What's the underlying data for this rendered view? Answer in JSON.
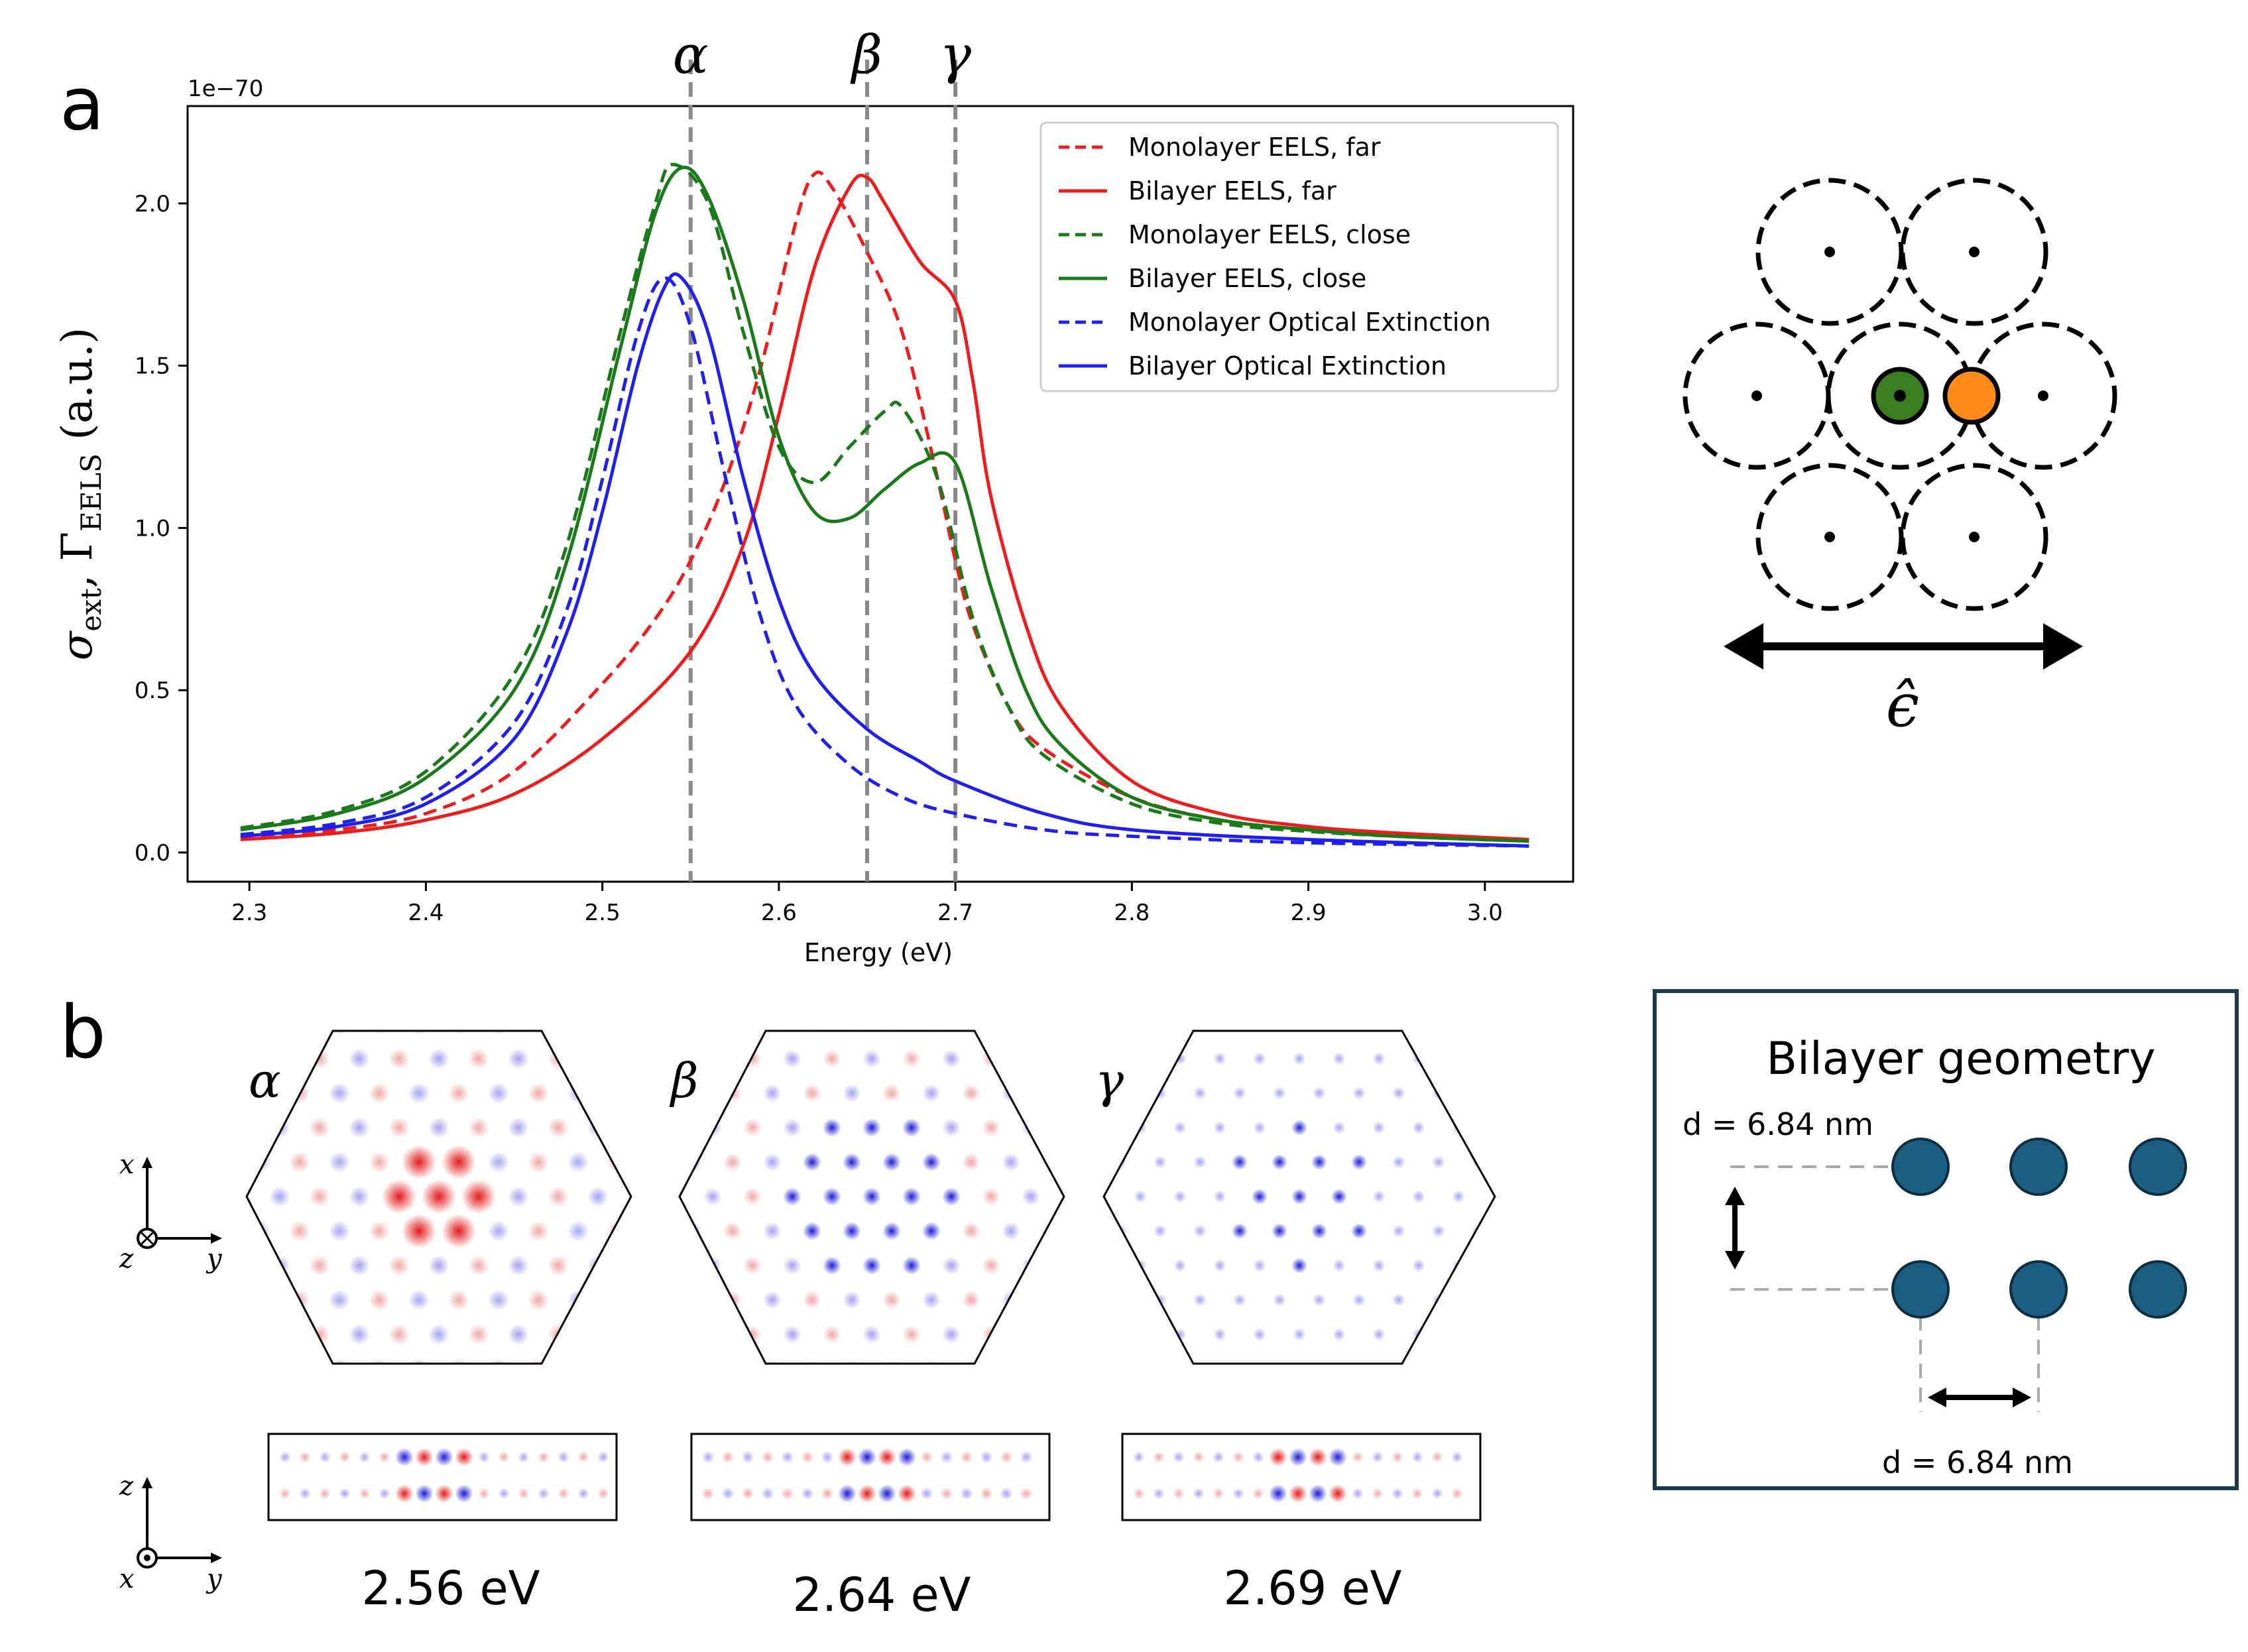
{
  "panels": {
    "a": "a",
    "b": "b"
  },
  "colors": {
    "red": "#ee1c1c",
    "green": "#1a7a1a",
    "blue": "#1f1fee",
    "gray": "#888888",
    "particle": "#1b5e80",
    "green_dot": "#3a7d22",
    "orange_dot": "#ff8c1a"
  },
  "chart_data": {
    "type": "line",
    "title": "",
    "xlabel": "Energy (eV)",
    "ylabel": "σext, ΓEELS (a.u.)",
    "ylabel_main": "σ",
    "ylabel_sub1": "ext",
    "ylabel_mid": ", Γ",
    "ylabel_sub2": "EELS",
    "ylabel_units": "(a.u.)",
    "scale_label": "1e−70",
    "xlim": [
      2.265,
      3.05
    ],
    "ylim": [
      -0.09,
      2.3
    ],
    "xticks": [
      2.3,
      2.4,
      2.5,
      2.6,
      2.7,
      2.8,
      2.9,
      3.0
    ],
    "xtick_labels": [
      "2.3",
      "2.4",
      "2.5",
      "2.6",
      "2.7",
      "2.8",
      "2.9",
      "3.0"
    ],
    "yticks": [
      0.0,
      0.5,
      1.0,
      1.5,
      2.0
    ],
    "ytick_labels": [
      "0.0",
      "0.5",
      "1.0",
      "1.5",
      "2.0"
    ],
    "grid": false,
    "legend_position": "top-right",
    "vlines": [
      {
        "x": 2.55,
        "label": "α"
      },
      {
        "x": 2.65,
        "label": "β"
      },
      {
        "x": 2.7,
        "label": "γ"
      }
    ],
    "series": [
      {
        "name": "Monolayer EELS, far",
        "color": "#ee1c1c",
        "dashed": true,
        "x": [
          2.295,
          2.35,
          2.4,
          2.45,
          2.5,
          2.53,
          2.55,
          2.57,
          2.59,
          2.61,
          2.62,
          2.63,
          2.65,
          2.67,
          2.69,
          2.7,
          2.71,
          2.73,
          2.75,
          2.8,
          2.85,
          2.9,
          2.95,
          3.025
        ],
        "y": [
          0.045,
          0.07,
          0.12,
          0.25,
          0.52,
          0.72,
          0.9,
          1.15,
          1.5,
          1.95,
          2.09,
          2.05,
          1.85,
          1.6,
          1.15,
          0.9,
          0.7,
          0.45,
          0.32,
          0.17,
          0.1,
          0.07,
          0.05,
          0.035
        ]
      },
      {
        "name": "Bilayer EELS, far",
        "color": "#ee1c1c",
        "dashed": false,
        "x": [
          2.295,
          2.35,
          2.4,
          2.45,
          2.5,
          2.55,
          2.58,
          2.6,
          2.62,
          2.64,
          2.65,
          2.66,
          2.68,
          2.7,
          2.71,
          2.72,
          2.74,
          2.76,
          2.8,
          2.85,
          2.9,
          2.95,
          3.025
        ],
        "y": [
          0.04,
          0.06,
          0.1,
          0.18,
          0.35,
          0.62,
          0.95,
          1.35,
          1.8,
          2.05,
          2.08,
          2.0,
          1.82,
          1.7,
          1.45,
          1.1,
          0.7,
          0.45,
          0.22,
          0.12,
          0.08,
          0.06,
          0.04
        ]
      },
      {
        "name": "Monolayer EELS, close",
        "color": "#1a7a1a",
        "dashed": true,
        "x": [
          2.295,
          2.35,
          2.4,
          2.45,
          2.48,
          2.51,
          2.53,
          2.54,
          2.56,
          2.58,
          2.6,
          2.62,
          2.64,
          2.66,
          2.67,
          2.69,
          2.71,
          2.73,
          2.75,
          2.8,
          2.85,
          2.9,
          2.95,
          3.025
        ],
        "y": [
          0.075,
          0.13,
          0.25,
          0.55,
          0.95,
          1.6,
          2.0,
          2.12,
          2.0,
          1.6,
          1.25,
          1.14,
          1.25,
          1.36,
          1.37,
          1.15,
          0.72,
          0.45,
          0.3,
          0.15,
          0.09,
          0.065,
          0.05,
          0.035
        ]
      },
      {
        "name": "Bilayer EELS, close",
        "color": "#1a7a1a",
        "dashed": false,
        "x": [
          2.295,
          2.35,
          2.4,
          2.45,
          2.48,
          2.51,
          2.53,
          2.545,
          2.56,
          2.58,
          2.6,
          2.62,
          2.64,
          2.66,
          2.68,
          2.7,
          2.72,
          2.74,
          2.76,
          2.8,
          2.85,
          2.9,
          2.95,
          3.025
        ],
        "y": [
          0.07,
          0.12,
          0.23,
          0.5,
          0.9,
          1.55,
          1.97,
          2.11,
          2.02,
          1.7,
          1.28,
          1.05,
          1.03,
          1.12,
          1.2,
          1.2,
          0.82,
          0.5,
          0.33,
          0.17,
          0.1,
          0.07,
          0.05,
          0.035
        ]
      },
      {
        "name": "Monolayer Optical Extinction",
        "color": "#1f1fee",
        "dashed": true,
        "x": [
          2.295,
          2.35,
          2.4,
          2.45,
          2.48,
          2.5,
          2.52,
          2.535,
          2.55,
          2.57,
          2.59,
          2.61,
          2.64,
          2.67,
          2.7,
          2.75,
          2.8,
          2.9,
          3.025
        ],
        "y": [
          0.055,
          0.09,
          0.17,
          0.4,
          0.75,
          1.15,
          1.6,
          1.77,
          1.62,
          1.15,
          0.72,
          0.45,
          0.27,
          0.17,
          0.12,
          0.07,
          0.05,
          0.03,
          0.02
        ]
      },
      {
        "name": "Bilayer Optical Extinction",
        "color": "#1f1fee",
        "dashed": false,
        "x": [
          2.295,
          2.35,
          2.4,
          2.45,
          2.48,
          2.5,
          2.52,
          2.535,
          2.545,
          2.56,
          2.58,
          2.6,
          2.62,
          2.65,
          2.68,
          2.7,
          2.75,
          2.8,
          2.9,
          3.025
        ],
        "y": [
          0.05,
          0.08,
          0.15,
          0.35,
          0.68,
          1.05,
          1.5,
          1.74,
          1.77,
          1.6,
          1.15,
          0.78,
          0.55,
          0.38,
          0.28,
          0.22,
          0.12,
          0.07,
          0.04,
          0.02
        ]
      }
    ]
  },
  "lattice": {
    "polarization_symbol": "ϵ̂"
  },
  "field_maps": [
    {
      "label": "α",
      "energy": "2.56 eV"
    },
    {
      "label": "β",
      "energy": "2.64 eV"
    },
    {
      "label": "γ",
      "energy": "2.69 eV"
    }
  ],
  "axes_top": {
    "x": "x",
    "y": "y",
    "z": "z"
  },
  "axes_bottom": {
    "z": "z",
    "x": "x",
    "y": "y"
  },
  "bilayer_geometry": {
    "title": "Bilayer geometry",
    "vertical_spacing": "d = 6.84 nm",
    "horizontal_spacing": "d = 6.84 nm"
  }
}
